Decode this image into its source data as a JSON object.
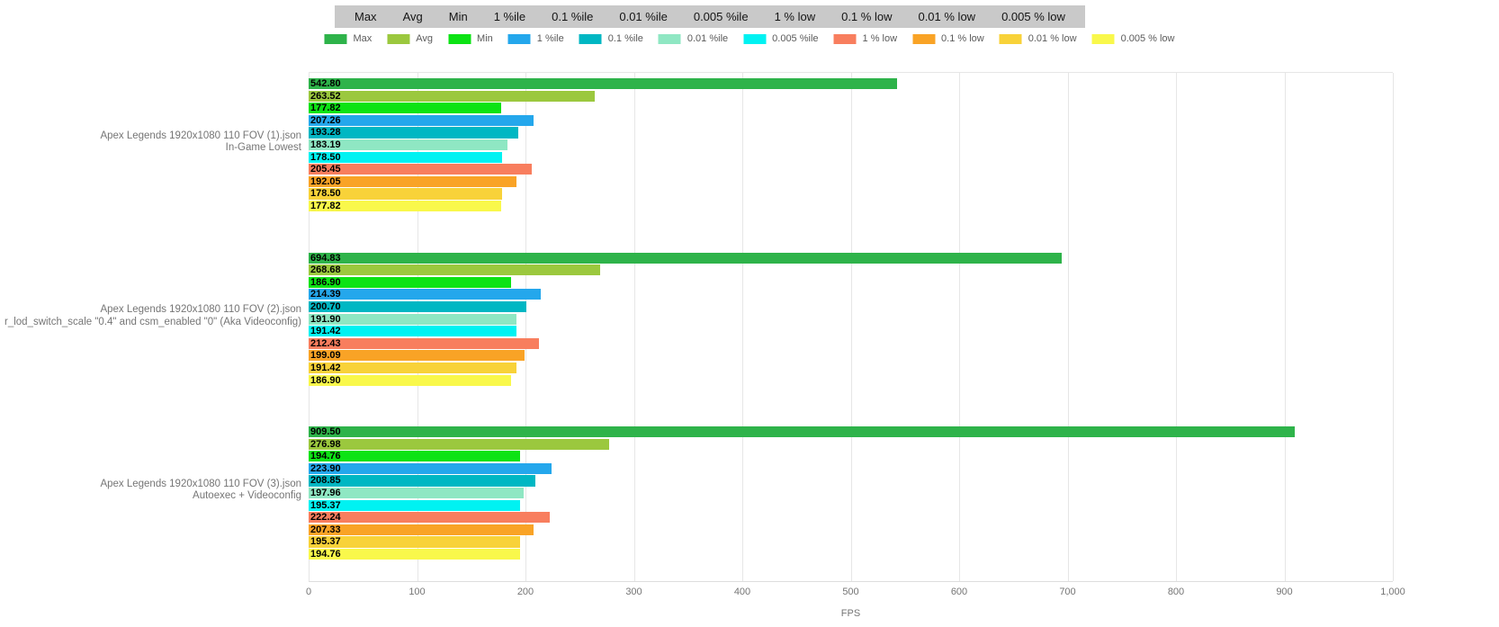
{
  "toolbar": {
    "buttons": [
      "Max",
      "Avg",
      "Min",
      "1 %ile",
      "0.1 %ile",
      "0.01 %ile",
      "0.005 %ile",
      "1 % low",
      "0.1 % low",
      "0.01 % low",
      "0.005 % low"
    ]
  },
  "legend": {
    "items": [
      {
        "label": "Max",
        "color": "#2eb34a"
      },
      {
        "label": "Avg",
        "color": "#9bc83e"
      },
      {
        "label": "Min",
        "color": "#0ce314"
      },
      {
        "label": "1 %ile",
        "color": "#24a7ec"
      },
      {
        "label": "0.1 %ile",
        "color": "#00b7c3"
      },
      {
        "label": "0.01 %ile",
        "color": "#8fe7c3"
      },
      {
        "label": "0.005 %ile",
        "color": "#00f2f2"
      },
      {
        "label": "1 % low",
        "color": "#f87e5e"
      },
      {
        "label": "0.1 % low",
        "color": "#f9a326"
      },
      {
        "label": "0.01 % low",
        "color": "#f8d239"
      },
      {
        "label": "0.005 % low",
        "color": "#f9f84b"
      }
    ]
  },
  "chart_data": {
    "type": "bar",
    "orientation": "horizontal",
    "title": "",
    "xlabel": "FPS",
    "ylabel": "",
    "xlim": [
      0,
      1000
    ],
    "grid": true,
    "legend_position": "top",
    "xticks": [
      0,
      100,
      200,
      300,
      400,
      500,
      600,
      700,
      800,
      900,
      1000
    ],
    "xtick_labels": [
      "0",
      "100",
      "200",
      "300",
      "400",
      "500",
      "600",
      "700",
      "800",
      "900",
      "1,000"
    ],
    "series_names": [
      "Max",
      "Avg",
      "Min",
      "1 %ile",
      "0.1 %ile",
      "0.01 %ile",
      "0.005 %ile",
      "1 % low",
      "0.1 % low",
      "0.01 % low",
      "0.005 % low"
    ],
    "groups": [
      {
        "label_line1": "Apex Legends 1920x1080 110 FOV (1).json",
        "label_line2": "In-Game Lowest",
        "values": [
          542.8,
          263.52,
          177.82,
          207.26,
          193.28,
          183.19,
          178.5,
          205.45,
          192.05,
          178.5,
          177.82
        ]
      },
      {
        "label_line1": "Apex Legends 1920x1080 110 FOV (2).json",
        "label_line2": "r_lod_switch_scale \"0.4\" and csm_enabled \"0\" (Aka Videoconfig)",
        "values": [
          694.83,
          268.68,
          186.9,
          214.39,
          200.7,
          191.9,
          191.42,
          212.43,
          199.09,
          191.42,
          186.9
        ]
      },
      {
        "label_line1": "Apex Legends 1920x1080 110 FOV (3).json",
        "label_line2": "Autoexec + Videoconfig",
        "values": [
          909.5,
          276.98,
          194.76,
          223.9,
          208.85,
          197.96,
          195.37,
          222.24,
          207.33,
          195.37,
          194.76
        ]
      }
    ]
  }
}
